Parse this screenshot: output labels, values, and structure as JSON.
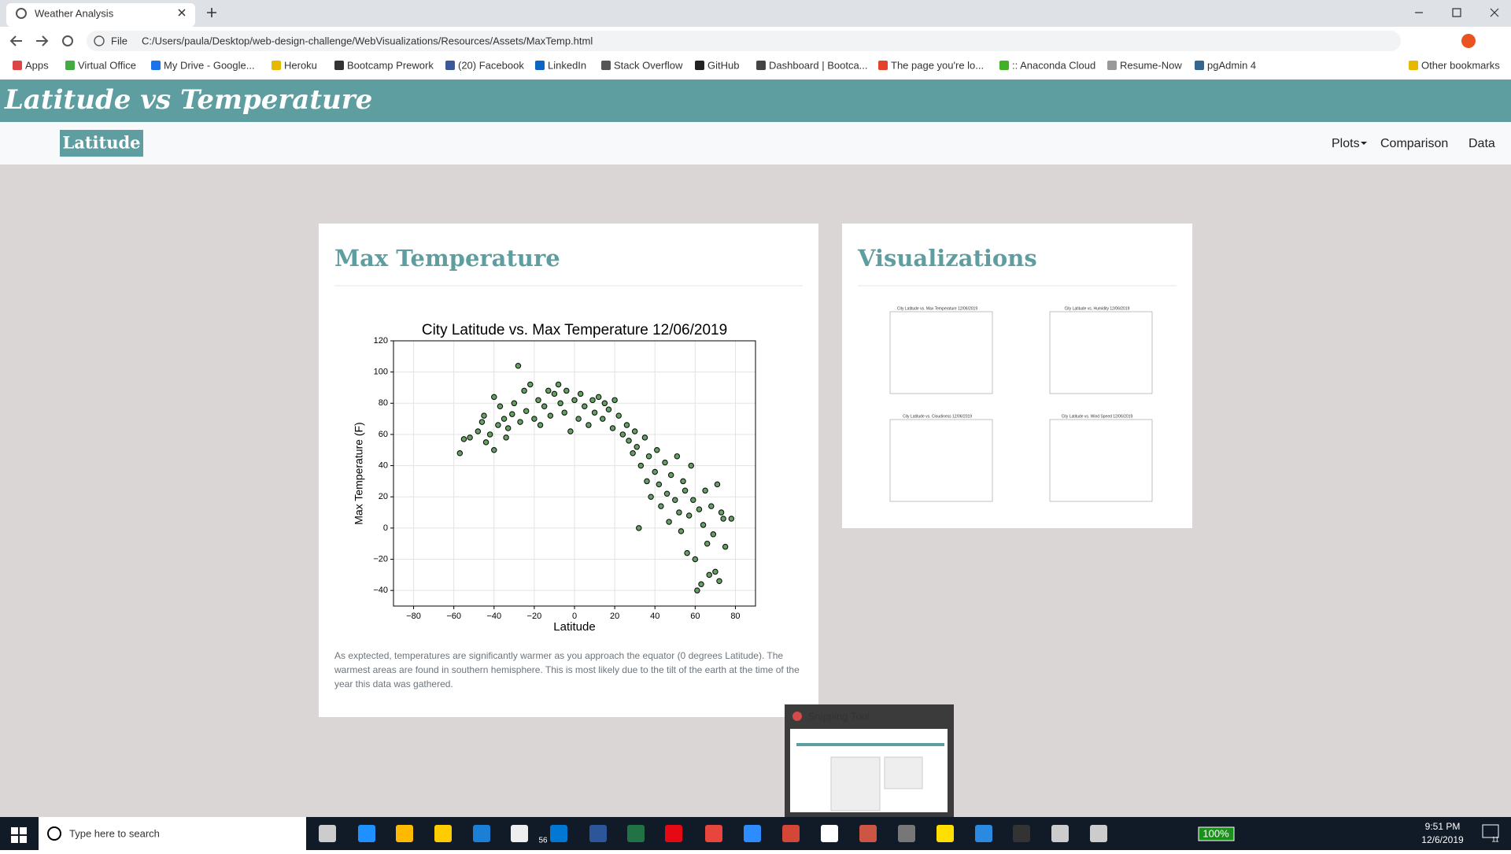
{
  "browser": {
    "tab_title": "Weather Analysis",
    "protocol": "File",
    "url": "C:/Users/paula/Desktop/web-design-challenge/WebVisualizations/Resources/Assets/MaxTemp.html",
    "bookmarks": [
      "Apps",
      "Virtual Office",
      "My Drive - Google...",
      "Heroku",
      "Bootcamp Prework",
      "(20) Facebook",
      "LinkedIn",
      "Stack Overflow",
      "GitHub",
      "Dashboard | Bootca...",
      "The page you're lo...",
      ":: Anaconda Cloud",
      "Resume-Now",
      "pgAdmin 4",
      "Other bookmarks"
    ]
  },
  "header": {
    "title": "Latitude vs Temperature"
  },
  "nav": {
    "brand": "Latitude",
    "links": [
      "Plots",
      "Comparison",
      "Data"
    ]
  },
  "main": {
    "heading": "Max Temperature",
    "paragraph": [
      "As exptected, temperatures are significantly warmer as you approach the equator (0 degrees Latitude). The",
      "warmest areas are found in southern hemisphere. This is most likely due to the tilt of the earth at the time of the",
      "year this data was gathered."
    ]
  },
  "chart_data": {
    "type": "scatter",
    "title": "City Latitude vs. Max Temperature 12/06/2019",
    "x_label": "Latitude",
    "y_label": "Max Temperature (F)",
    "color": "#3d8b3d",
    "grid": true,
    "xlim": [
      -90,
      90
    ],
    "ylim": [
      -50,
      120
    ],
    "xticks": [
      {
        "value": -80,
        "label": "−80"
      },
      {
        "value": -60,
        "label": "−60"
      },
      {
        "value": -40,
        "label": "−40"
      },
      {
        "value": -20,
        "label": "−20"
      },
      0,
      20,
      40,
      60,
      80
    ],
    "yticks": [
      {
        "value": -40,
        "label": "−40"
      },
      {
        "value": -20,
        "label": "−20"
      },
      0,
      20,
      40,
      60,
      80,
      100,
      120
    ],
    "x": [
      -57,
      -55,
      -52,
      -48,
      -46,
      -45,
      -44,
      -42,
      -40,
      -40,
      -38,
      -37,
      -35,
      -34,
      -33,
      -31,
      -30,
      -28,
      -27,
      -25,
      -24,
      -22,
      -20,
      -18,
      -17,
      -15,
      -13,
      -12,
      -10,
      -8,
      -7,
      -5,
      -4,
      -2,
      0,
      2,
      3,
      5,
      7,
      9,
      10,
      12,
      14,
      15,
      17,
      19,
      20,
      22,
      24,
      26,
      27,
      29,
      30,
      31,
      32,
      33,
      35,
      36,
      37,
      38,
      40,
      41,
      42,
      43,
      45,
      46,
      47,
      48,
      50,
      51,
      52,
      53,
      54,
      55,
      56,
      57,
      58,
      59,
      60,
      61,
      62,
      63,
      64,
      65,
      66,
      67,
      68,
      69,
      70,
      71,
      72,
      73,
      74,
      75,
      78
    ],
    "y": [
      48,
      57,
      58,
      62,
      68,
      72,
      55,
      60,
      84,
      50,
      66,
      78,
      70,
      58,
      64,
      73,
      80,
      104,
      68,
      88,
      75,
      92,
      70,
      82,
      66,
      78,
      88,
      72,
      86,
      92,
      80,
      74,
      88,
      62,
      82,
      70,
      86,
      78,
      66,
      82,
      74,
      84,
      70,
      80,
      76,
      64,
      82,
      72,
      60,
      66,
      56,
      48,
      62,
      52,
      0,
      40,
      58,
      30,
      46,
      20,
      36,
      50,
      28,
      14,
      42,
      22,
      4,
      34,
      18,
      46,
      10,
      -2,
      30,
      24,
      -16,
      8,
      40,
      18,
      -20,
      -40,
      12,
      -36,
      2,
      24,
      -10,
      -30,
      14,
      -4,
      -28,
      28,
      -34,
      10,
      6,
      -12,
      6
    ]
  },
  "visualizations": {
    "heading": "Visualizations",
    "thumbnails": [
      "City Latitude vs. Max Temperature 12/06/2019",
      "City Latitude vs. Humidity 12/06/2019",
      "City Latitude vs. Cloudiness 12/06/2019",
      "City Latitude vs. Wind Speed 12/06/2019"
    ]
  },
  "snipping_tool": {
    "title": "Snipping Tool"
  },
  "taskbar": {
    "search": "Type here to search",
    "mail_badge": "56",
    "battery": "100%",
    "time": "9:51 PM",
    "date": "12/6/2019",
    "notifications": "11"
  }
}
